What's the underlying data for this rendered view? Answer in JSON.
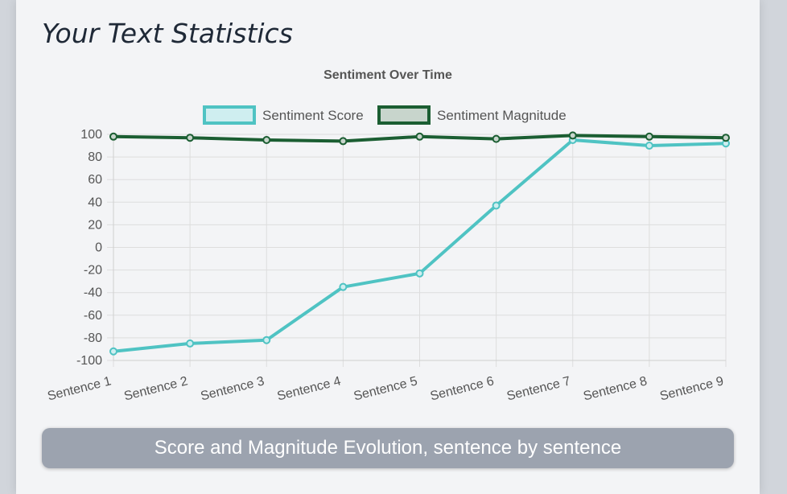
{
  "card": {
    "title": "Your Text Statistics",
    "caption": "Score and Magnitude Evolution, sentence by sentence"
  },
  "chart_data": {
    "type": "line",
    "title": "Sentiment Over Time",
    "categories": [
      "Sentence 1",
      "Sentence 2",
      "Sentence 3",
      "Sentence 4",
      "Sentence 5",
      "Sentence 6",
      "Sentence 7",
      "Sentence 8",
      "Sentence 9"
    ],
    "series": [
      {
        "name": "Sentiment Score",
        "color": "#4fc3c3",
        "fill": "#cfeef0",
        "values": [
          -92,
          -85,
          -82,
          -35,
          -23,
          37,
          95,
          90,
          92
        ]
      },
      {
        "name": "Sentiment Magnitude",
        "color": "#1b5e32",
        "fill": "#c8d5cc",
        "values": [
          98,
          97,
          95,
          94,
          98,
          96,
          99,
          98,
          97
        ]
      }
    ],
    "ylim": [
      -100,
      100
    ],
    "yticks": [
      "100",
      "80",
      "60",
      "40",
      "20",
      "0",
      "-20",
      "-40",
      "-60",
      "-80",
      "-100"
    ],
    "grid": true,
    "legend": "top-center"
  }
}
